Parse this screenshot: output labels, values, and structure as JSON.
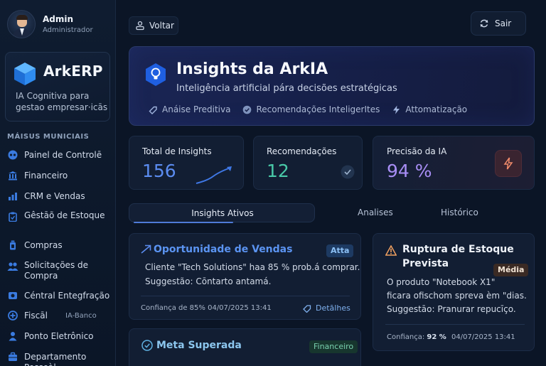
{
  "user": {
    "name": "Admin",
    "role": "Administrador"
  },
  "brand": {
    "name": "ArkERP",
    "tagline": "IA Cognitiva para gestao empresar·icās"
  },
  "sidebar": {
    "section_title": "MÁISUS MUNICIAIS",
    "items": [
      {
        "label": "Painel de Controlē",
        "icon": "dashboard-icon"
      },
      {
        "label": "Financeiro",
        "icon": "bank-icon"
      },
      {
        "label": "CRM e Vendas",
        "icon": "bar-chart-icon"
      },
      {
        "label": "Gêstāõ de Estoque",
        "icon": "clipboard-icon"
      },
      {
        "label": "Compras",
        "icon": "cup-icon"
      },
      {
        "label": "Solicitações de Compra",
        "icon": "users-icon"
      },
      {
        "label": "Céntral Entegfração",
        "icon": "hub-icon"
      },
      {
        "label": "Fiscāl",
        "icon": "fiscal-icon",
        "extra": "IA-Banco"
      },
      {
        "label": "Ponto Eletrônico",
        "icon": "person-icon"
      },
      {
        "label": "Departamento Pessoàl",
        "icon": "briefcase-icon"
      }
    ]
  },
  "topbar": {
    "back_label": "Voltar",
    "exit_label": "Sair"
  },
  "hero": {
    "title": "Insights da ArkIA",
    "subtitle": "Inteligência artificial pára decisões estratégicas",
    "features": [
      {
        "label": "Anáise Preditiva",
        "icon": "tag-icon"
      },
      {
        "label": "Recomendações InteligerItes",
        "icon": "check-badge-icon"
      },
      {
        "label": "Attomatização",
        "icon": "bolt-icon"
      }
    ]
  },
  "stats": [
    {
      "label": "Total de Insights",
      "value": "156",
      "color": "#5b8cf0"
    },
    {
      "label": "Recomendações",
      "value": "12",
      "color": "#49c9a8"
    },
    {
      "label": "Precisão da IA",
      "value": "94 %",
      "color": "#a88ef5"
    }
  ],
  "tabs": {
    "active": "Insights Ativos",
    "others": [
      "Analises",
      "Histórico"
    ]
  },
  "cards": {
    "opportunity": {
      "title": "Oportunidade de Vendas",
      "badge": "Atta",
      "line1": "Cliente \"Tech Solutions\" haa 85 % prob.á comprar.",
      "line2": "Suggestão: Cōntarto antamá.",
      "meta": "Confiança de 85%   04/07/2025 13:41",
      "details": "Detālhes"
    },
    "stock": {
      "title_line1": "Ruptura de Estoque",
      "title_line2": "Prevista",
      "badge": "Média",
      "line1": "O produto \"Notebook X1\"",
      "line2": "ficara ofischom spreva èm \"dias.",
      "line3": "Suggestāo: Pranurar repucīço.",
      "meta_label": "Confiança:",
      "meta_value": "92 %",
      "meta_date": "04/07/2025 13:41"
    },
    "goal": {
      "title": "Meta Superada",
      "badge": "Financeiro"
    }
  }
}
